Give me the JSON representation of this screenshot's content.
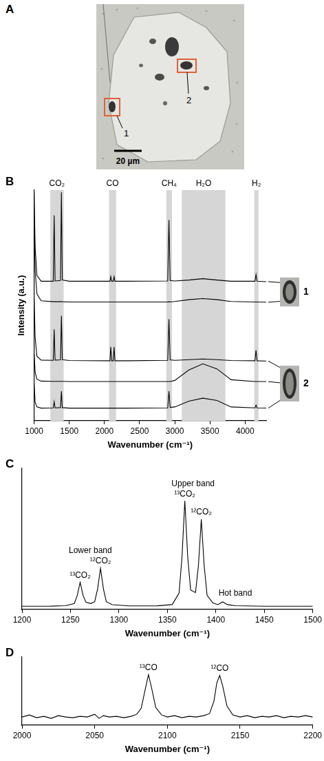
{
  "photo": {
    "panel": "A",
    "scale_bar": "20 µm",
    "regions": [
      "1",
      "2"
    ]
  },
  "chart_data": [
    {
      "panel": "B",
      "type": "line",
      "x_label": "Wavenumber (cm⁻¹)",
      "y_label": "Intensity (a.u.)",
      "x": [
        1000,
        1015,
        1040,
        1100,
        1272,
        1285,
        1298,
        1375,
        1388,
        1401,
        1500,
        2078,
        2090,
        2102,
        2125,
        2137,
        2149,
        2300,
        2900,
        2917,
        2934,
        3000,
        3200,
        3400,
        3600,
        3800,
        4140,
        4155,
        4170,
        4300
      ],
      "xlim": [
        1000,
        4300
      ],
      "xticks": [
        1000,
        1500,
        2000,
        2500,
        3000,
        3500,
        4000
      ],
      "ylim": [
        0,
        100
      ],
      "tick_labels": "x",
      "grid": false,
      "bands": [
        {
          "label": "CO₂",
          "range": [
            1230,
            1420
          ]
        },
        {
          "label": "CO",
          "range": [
            2065,
            2165
          ]
        },
        {
          "label": "CH₄",
          "range": [
            2880,
            2960
          ]
        },
        {
          "label": "H₂O",
          "range": [
            3100,
            3720
          ]
        },
        {
          "label": "H₂",
          "range": [
            4130,
            4190
          ]
        }
      ],
      "series": [
        {
          "inset": "1",
          "color": "#000000",
          "values": [
            99,
            75,
            63,
            60.5,
            60.5,
            89,
            60.6,
            60.8,
            99,
            61,
            60.5,
            60.5,
            62.5,
            60.5,
            60.5,
            62.5,
            60.5,
            60.5,
            60.6,
            87,
            60.8,
            60.6,
            61,
            61.6,
            61,
            60.5,
            60.5,
            63.4,
            60.5,
            60.3
          ]
        },
        {
          "inset": "1",
          "color": "#000000",
          "values": [
            87,
            65,
            55,
            52,
            51.6,
            51.7,
            51.6,
            51.6,
            51.7,
            51.6,
            51.5,
            51.5,
            51.5,
            51.5,
            51.5,
            51.5,
            51.5,
            51.5,
            51.5,
            51.6,
            51.5,
            51.7,
            52.5,
            53,
            52.5,
            51.7,
            51.5,
            51.5,
            51.5,
            51.4
          ]
        },
        {
          "inset": "2",
          "color": "#000000",
          "values": [
            53,
            36,
            28,
            26.3,
            26.2,
            39.6,
            26.3,
            26.4,
            45.5,
            26.5,
            26.1,
            26,
            32,
            26,
            26,
            32,
            26,
            26,
            26.2,
            44,
            26.4,
            26.2,
            26.5,
            26.8,
            26.5,
            26.1,
            26,
            30.6,
            26,
            25.9
          ]
        },
        {
          "inset": "2",
          "color": "#000000",
          "values": [
            29,
            21,
            18,
            17.2,
            17.1,
            17.1,
            17.1,
            17.1,
            17.1,
            17.1,
            17,
            17,
            17,
            17,
            17,
            17,
            17,
            17,
            17,
            17,
            17,
            17.5,
            22,
            24.7,
            22.5,
            17.8,
            17,
            17,
            17,
            17
          ]
        },
        {
          "inset": "2",
          "color": "#000000",
          "values": [
            16,
            8,
            6,
            5.5,
            5.6,
            8.3,
            5.6,
            5.7,
            12.8,
            5.7,
            5.5,
            5.5,
            5.5,
            5.5,
            5.5,
            5.5,
            5.5,
            5.5,
            5.6,
            12.8,
            5.8,
            6,
            8.5,
            9.8,
            8.8,
            6,
            5.6,
            6.8,
            5.6,
            5.5
          ]
        }
      ]
    },
    {
      "panel": "C",
      "type": "line",
      "x_label": "Wavenumber (cm⁻¹)",
      "x": [
        1200,
        1230,
        1245,
        1254,
        1257,
        1260,
        1263,
        1266,
        1271,
        1275,
        1278,
        1281,
        1284,
        1287,
        1293,
        1310,
        1340,
        1355,
        1362,
        1365,
        1368,
        1371,
        1374,
        1379,
        1382,
        1385,
        1388,
        1391,
        1397,
        1402,
        1407,
        1412,
        1420,
        1450,
        1500
      ],
      "xlim": [
        1200,
        1500
      ],
      "xticks": [
        1200,
        1250,
        1300,
        1350,
        1400,
        1450,
        1500
      ],
      "ylim": [
        0,
        1.3
      ],
      "tick_labels": "x",
      "grid": false,
      "series": [
        {
          "color": "#000000",
          "values": [
            0.03,
            0.031,
            0.035,
            0.056,
            0.129,
            0.25,
            0.129,
            0.066,
            0.055,
            0.072,
            0.19,
            0.38,
            0.19,
            0.072,
            0.044,
            0.033,
            0.034,
            0.045,
            0.15,
            0.47,
            1.0,
            0.48,
            0.18,
            0.156,
            0.4,
            0.83,
            0.4,
            0.13,
            0.06,
            0.045,
            0.07,
            0.045,
            0.035,
            0.03,
            0.03
          ]
        }
      ],
      "peak_labels": [
        {
          "text": "¹³CO₂",
          "x": 1260
        },
        {
          "text": "¹²CO₂",
          "x": 1281
        },
        {
          "text": "¹³CO₂",
          "x": 1368
        },
        {
          "text": "¹²CO₂",
          "x": 1385
        },
        {
          "text": "Hot band",
          "x": 1407
        }
      ],
      "band_labels": [
        {
          "text": "Lower band",
          "peaks": [
            1260,
            1281
          ]
        },
        {
          "text": "Upper band",
          "peaks": [
            1368,
            1385
          ]
        }
      ]
    },
    {
      "panel": "D",
      "type": "line",
      "x_label": "Wavenumber (cm⁻¹)",
      "x": [
        2000,
        2005,
        2010,
        2015,
        2020,
        2025,
        2030,
        2035,
        2040,
        2045,
        2050,
        2053,
        2056,
        2060,
        2065,
        2070,
        2075,
        2079,
        2082,
        2085,
        2087,
        2089,
        2092,
        2096,
        2100,
        2105,
        2110,
        2115,
        2120,
        2125,
        2129,
        2132,
        2134,
        2136,
        2138,
        2141,
        2145,
        2150,
        2155,
        2160,
        2165,
        2170,
        2175,
        2180,
        2185,
        2190,
        2195,
        2200
      ],
      "xlim": [
        2000,
        2200
      ],
      "xticks": [
        2000,
        2050,
        2100,
        2150,
        2200
      ],
      "ylim": [
        0,
        1
      ],
      "tick_labels": "x",
      "grid": false,
      "series": [
        {
          "color": "#000000",
          "values": [
            0.12,
            0.15,
            0.11,
            0.13,
            0.1,
            0.14,
            0.12,
            0.11,
            0.13,
            0.12,
            0.16,
            0.1,
            0.14,
            0.12,
            0.13,
            0.11,
            0.13,
            0.16,
            0.25,
            0.55,
            0.74,
            0.56,
            0.26,
            0.15,
            0.12,
            0.14,
            0.11,
            0.13,
            0.12,
            0.14,
            0.17,
            0.35,
            0.62,
            0.73,
            0.58,
            0.28,
            0.15,
            0.12,
            0.14,
            0.11,
            0.13,
            0.12,
            0.14,
            0.11,
            0.13,
            0.12,
            0.14,
            0.12
          ]
        }
      ],
      "peak_labels": [
        {
          "text": "¹³CO",
          "x": 2087
        },
        {
          "text": "¹²CO",
          "x": 2136
        }
      ]
    }
  ]
}
